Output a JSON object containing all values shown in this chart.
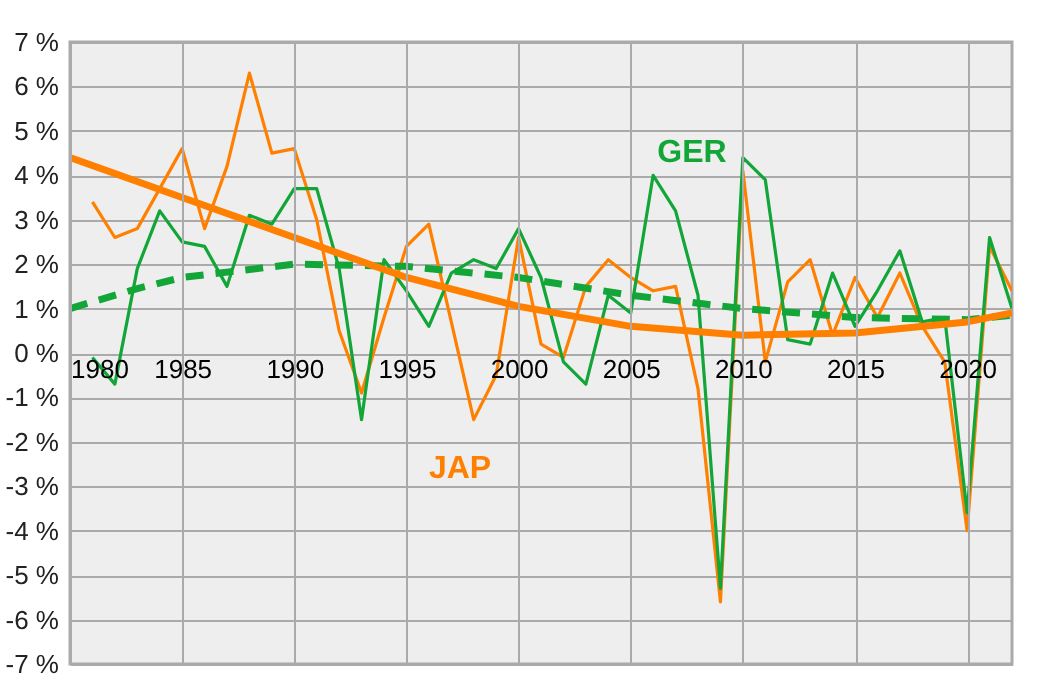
{
  "chart_data": {
    "type": "line",
    "x": [
      1981,
      1982,
      1983,
      1984,
      1985,
      1986,
      1987,
      1988,
      1989,
      1990,
      1991,
      1992,
      1993,
      1994,
      1995,
      1996,
      1997,
      1998,
      1999,
      2000,
      2001,
      2002,
      2003,
      2004,
      2005,
      2006,
      2007,
      2008,
      2009,
      2010,
      2011,
      2012,
      2013,
      2014,
      2015,
      2016,
      2017,
      2018,
      2019,
      2020,
      2021,
      2022
    ],
    "series": [
      {
        "name": "JAP",
        "color": "#ff8000",
        "values": [
          3.4,
          2.6,
          2.8,
          3.7,
          4.6,
          2.8,
          4.2,
          6.3,
          4.5,
          4.6,
          3.0,
          0.5,
          -0.9,
          0.8,
          2.4,
          2.9,
          0.7,
          -1.5,
          -0.5,
          2.6,
          0.2,
          -0.1,
          1.5,
          2.1,
          1.7,
          1.4,
          1.5,
          -0.8,
          -5.6,
          4.1,
          -0.2,
          1.6,
          2.1,
          0.4,
          1.7,
          0.8,
          1.8,
          0.6,
          -0.2,
          -4.0,
          2.4,
          1.4
        ]
      },
      {
        "name": "GER",
        "color": "#12a537",
        "values": [
          -0.1,
          -0.7,
          1.9,
          3.2,
          2.5,
          2.4,
          1.5,
          3.1,
          2.9,
          3.7,
          3.7,
          1.9,
          -1.5,
          2.1,
          1.4,
          0.6,
          1.8,
          2.1,
          1.9,
          2.8,
          1.7,
          -0.2,
          -0.7,
          1.3,
          0.9,
          4.0,
          3.2,
          1.3,
          -5.3,
          4.4,
          3.9,
          0.3,
          0.2,
          1.8,
          0.6,
          1.4,
          2.3,
          0.7,
          0.8,
          -3.6,
          2.6,
          1.0
        ]
      },
      {
        "color": "#12a537",
        "line_style": "dashed",
        "x": [
          1980,
          1983,
          1985,
          1990,
          1995,
          2000,
          2005,
          2010,
          2015,
          2020,
          2022
        ],
        "values": [
          1.0,
          1.45,
          1.7,
          2.0,
          1.95,
          1.7,
          1.3,
          1.0,
          0.8,
          0.75,
          0.85
        ]
      },
      {
        "color": "#ff8000",
        "x": [
          1980,
          1985,
          1990,
          1995,
          2000,
          2005,
          2010,
          2015,
          2020,
          2022
        ],
        "values": [
          4.4,
          3.5,
          2.6,
          1.7,
          1.05,
          0.6,
          0.4,
          0.45,
          0.7,
          0.9
        ]
      }
    ],
    "xlim": [
      1980,
      2022
    ],
    "xticks": [
      1980,
      1985,
      1990,
      1995,
      2000,
      2005,
      2010,
      2015,
      2020
    ],
    "ylim": [
      -7,
      7
    ],
    "yticks": [
      {
        "value": -7,
        "label": "-7 %"
      },
      {
        "value": -6,
        "label": "-6 %"
      },
      {
        "value": -5,
        "label": "-5 %"
      },
      {
        "value": -4,
        "label": "-4 %"
      },
      {
        "value": -3,
        "label": "-3 %"
      },
      {
        "value": -2,
        "label": "-2 %"
      },
      {
        "value": -1,
        "label": "-1 %"
      },
      {
        "value": 0,
        "label": "0 %"
      },
      {
        "value": 1,
        "label": "1 %"
      },
      {
        "value": 2,
        "label": "2 %"
      },
      {
        "value": 3,
        "label": "3 %"
      },
      {
        "value": 4,
        "label": "4 %"
      },
      {
        "value": 5,
        "label": "5 %"
      },
      {
        "value": 6,
        "label": "6 %"
      },
      {
        "value": 7,
        "label": "7 %"
      }
    ],
    "grid": true,
    "line_style": "solid",
    "marker": "none"
  }
}
